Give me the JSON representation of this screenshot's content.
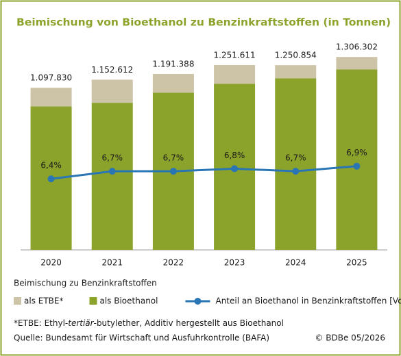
{
  "chart_data": {
    "type": "bar",
    "stacked": true,
    "title": "Beimischung von Bioethanol zu Benzinkraftstoffen (in Tonnen)",
    "categories": [
      "2020",
      "2021",
      "2022",
      "2023",
      "2024",
      "2025"
    ],
    "legend_title": "Beimischung zu Benzinkraftstoffen",
    "series": [
      {
        "name": "als ETBE*",
        "color": "#cdc3a7",
        "values": [
          125830,
          156612,
          126388,
          126611,
          88854,
          84302
        ]
      },
      {
        "name": "als Bioethanol",
        "color": "#8ba32b",
        "values": [
          972000,
          996000,
          1065000,
          1125000,
          1162000,
          1222000
        ]
      },
      {
        "name": "Anteil an Bioethanol in Benzinkraftstoffen [Vol.-%]",
        "type": "line",
        "axis": "y2",
        "color": "#2a76b5",
        "values": [
          6.4,
          6.7,
          6.7,
          6.8,
          6.7,
          6.9
        ],
        "value_labels": [
          "6,4%",
          "6,7%",
          "6,7%",
          "6,8%",
          "6,7%",
          "6,9%"
        ]
      }
    ],
    "totals": {
      "values": [
        1097830,
        1152612,
        1191388,
        1251611,
        1250854,
        1306302
      ],
      "value_labels": [
        "1.097.830",
        "1.152.612",
        "1.191.388",
        "1.251.611",
        "1.250.854",
        "1.306.302"
      ]
    },
    "ylim": [
      0,
      1400000
    ],
    "y2lim": [
      3.6,
      11.75
    ],
    "footnote": [
      "*ETBE: Ethyl-",
      "tertiär",
      "-butylether, Additiv hergestellt aus Bioethanol"
    ],
    "source": "Quelle: Bundesamt für Wirtschaft und Ausfuhrkontrolle (BAFA)",
    "copyright": "© BDBe 05/2026"
  }
}
